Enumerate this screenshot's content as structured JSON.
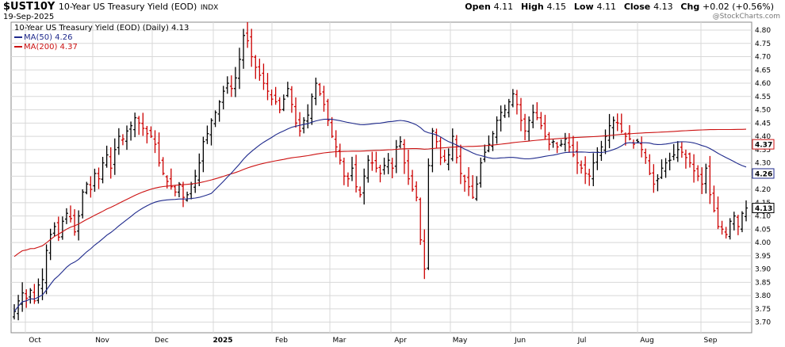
{
  "header": {
    "symbol": "$UST10Y",
    "description": "10-Year US Treasury Yield (EOD)",
    "exchange": "INDX",
    "date": "19-Sep-2025",
    "open_label": "Open",
    "open": "4.11",
    "high_label": "High",
    "high": "4.15",
    "low_label": "Low",
    "low": "4.11",
    "close_label": "Close",
    "close": "4.13",
    "chg_label": "Chg",
    "chg": "+0.02 (+0.56%)",
    "brand": "@StockCharts.com"
  },
  "legend": {
    "main": "10-Year US Treasury Yield (EOD) (Daily) 4.13",
    "ma50": "MA(50) 4.26",
    "ma200": "MA(200) 4.37"
  },
  "colors": {
    "up": "#000000",
    "down": "#cc0000",
    "ma50": "#1f2a8c",
    "ma200": "#cc1111",
    "grid": "#d8d8d8"
  },
  "chart_data": {
    "type": "ohlc",
    "ylim": [
      3.66,
      4.83
    ],
    "yticks": [
      "3.70",
      "3.75",
      "3.80",
      "3.85",
      "3.90",
      "3.95",
      "4.00",
      "4.05",
      "4.10",
      "4.15",
      "4.20",
      "4.25",
      "4.30",
      "4.35",
      "4.40",
      "4.45",
      "4.50",
      "4.55",
      "4.60",
      "4.65",
      "4.70",
      "4.75",
      "4.80"
    ],
    "xlabels": [
      "Oct",
      "Nov",
      "Dec",
      "2025",
      "Feb",
      "Mar",
      "Apr",
      "May",
      "Jun",
      "Jul",
      "Aug",
      "Sep"
    ],
    "bold_xlabel": "2025",
    "last_value_tags": {
      "close": "4.13",
      "ma50": "4.26",
      "ma200": "4.37"
    },
    "closes": [
      3.74,
      3.78,
      3.81,
      3.79,
      3.82,
      3.78,
      3.84,
      3.86,
      3.97,
      4.03,
      4.06,
      4.02,
      4.08,
      4.11,
      4.09,
      4.04,
      4.1,
      4.19,
      4.22,
      4.2,
      4.26,
      4.24,
      4.3,
      4.33,
      4.28,
      4.35,
      4.4,
      4.39,
      4.42,
      4.44,
      4.47,
      4.45,
      4.43,
      4.41,
      4.4,
      4.37,
      4.3,
      4.26,
      4.23,
      4.21,
      4.19,
      4.22,
      4.17,
      4.18,
      4.22,
      4.25,
      4.3,
      4.38,
      4.41,
      4.46,
      4.49,
      4.53,
      4.57,
      4.6,
      4.58,
      4.62,
      4.69,
      4.78,
      4.76,
      4.7,
      4.66,
      4.63,
      4.6,
      4.57,
      4.54,
      4.53,
      4.5,
      4.54,
      4.58,
      4.52,
      4.45,
      4.42,
      4.46,
      4.48,
      4.55,
      4.6,
      4.56,
      4.52,
      4.46,
      4.4,
      4.36,
      4.31,
      4.25,
      4.24,
      4.28,
      4.21,
      4.18,
      4.25,
      4.31,
      4.3,
      4.28,
      4.26,
      4.29,
      4.31,
      4.28,
      4.36,
      4.38,
      4.3,
      4.24,
      4.2,
      4.17,
      4.01,
      3.9,
      4.29,
      4.42,
      4.38,
      4.32,
      4.31,
      4.33,
      4.4,
      4.32,
      4.26,
      4.23,
      4.21,
      4.17,
      4.22,
      4.3,
      4.34,
      4.37,
      4.41,
      4.46,
      4.49,
      4.5,
      4.53,
      4.56,
      4.52,
      4.46,
      4.42,
      4.46,
      4.49,
      4.47,
      4.44,
      4.4,
      4.37,
      4.38,
      4.36,
      4.37,
      4.39,
      4.36,
      4.33,
      4.3,
      4.28,
      4.26,
      4.25,
      4.3,
      4.34,
      4.36,
      4.4,
      4.44,
      4.46,
      4.45,
      4.42,
      4.4,
      4.39,
      4.37,
      4.38,
      4.35,
      4.32,
      4.26,
      4.22,
      4.24,
      4.28,
      4.3,
      4.31,
      4.33,
      4.35,
      4.34,
      4.32,
      4.3,
      4.27,
      4.25,
      4.22,
      4.28,
      4.18,
      4.12,
      4.06,
      4.05,
      4.03,
      4.08,
      4.1,
      4.06,
      4.11,
      4.13
    ]
  }
}
